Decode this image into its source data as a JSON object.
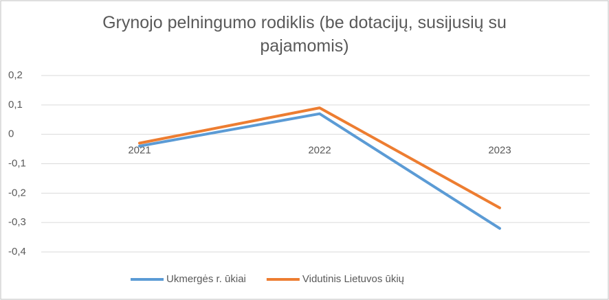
{
  "chart_data": {
    "type": "line",
    "title": "Grynojo pelningumo rodiklis (be dotacijų, susijusių su pajamomis)",
    "categories": [
      "2021",
      "2022",
      "2023"
    ],
    "series": [
      {
        "name": "Ukmergės r. ūkiai",
        "color": "#5b9bd5",
        "values": [
          -0.04,
          0.07,
          -0.32
        ]
      },
      {
        "name": "Vidutinis Lietuvos ūkių",
        "color": "#ed7d31",
        "values": [
          -0.03,
          0.09,
          -0.25
        ]
      }
    ],
    "ylim": [
      -0.4,
      0.2
    ],
    "yticks": [
      {
        "value": 0.2,
        "label": "0,2"
      },
      {
        "value": 0.1,
        "label": "0,1"
      },
      0,
      {
        "value": -0.1,
        "label": "-0,1"
      },
      {
        "value": -0.2,
        "label": "-0,2"
      },
      {
        "value": -0.3,
        "label": "-0,3"
      },
      {
        "value": -0.4,
        "label": "-0,4"
      }
    ],
    "grid": true,
    "legend": "bottom"
  }
}
